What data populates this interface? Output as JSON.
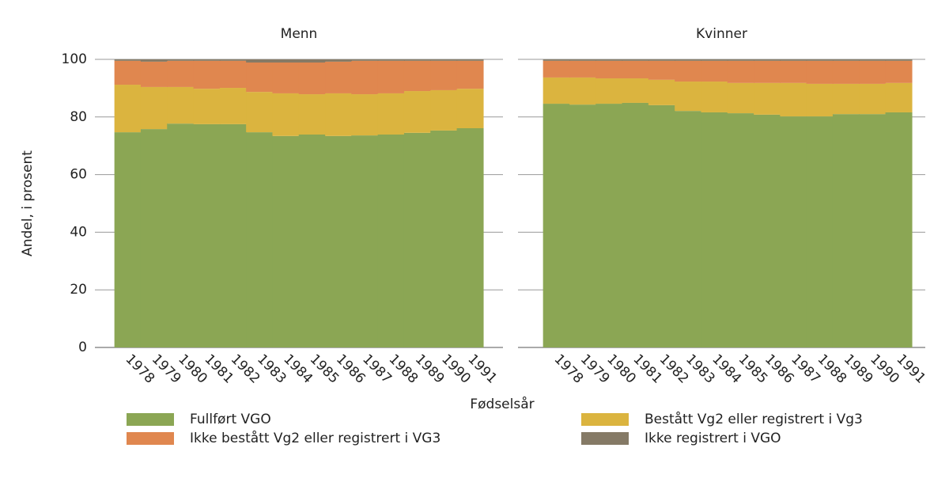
{
  "ylabel": "Andel, i prosent",
  "xlabel": "Fødselsår",
  "chart_data": [
    {
      "type": "stacked-bar",
      "title": "Menn",
      "categories": [
        "1978",
        "1979",
        "1980",
        "1981",
        "1982",
        "1983",
        "1984",
        "1985",
        "1986",
        "1987",
        "1988",
        "1989",
        "1990",
        "1991"
      ],
      "ylim": [
        0,
        100
      ],
      "yticks": [
        0,
        20,
        40,
        60,
        80,
        100
      ],
      "grid": true,
      "series": [
        {
          "name": "Fullført VGO",
          "color": "#8ba654",
          "values": [
            74.7,
            75.8,
            77.7,
            77.5,
            77.5,
            74.7,
            73.4,
            73.9,
            73.4,
            73.6,
            73.9,
            74.5,
            75.3,
            76.1
          ]
        },
        {
          "name": "Bestått Vg2 eller registrert i Vg3",
          "color": "#dbb43f",
          "values": [
            16.5,
            14.6,
            12.7,
            12.3,
            12.6,
            14.0,
            14.8,
            14.0,
            14.8,
            14.3,
            14.3,
            14.5,
            14.0,
            13.7
          ]
        },
        {
          "name": "Ikke bestått Vg2 eller registrert i VG3",
          "color": "#e0874f",
          "values": [
            8.3,
            8.8,
            9.1,
            9.7,
            9.4,
            10.2,
            10.7,
            11.0,
            11.0,
            11.6,
            11.3,
            10.5,
            10.2,
            9.7
          ]
        },
        {
          "name": "Ikke registrert i VGO",
          "color": "#857a66",
          "values": [
            0.5,
            0.8,
            0.5,
            0.5,
            0.5,
            1.1,
            1.1,
            1.1,
            0.8,
            0.5,
            0.5,
            0.5,
            0.5,
            0.5
          ]
        }
      ]
    },
    {
      "type": "stacked-bar",
      "title": "Kvinner",
      "categories": [
        "1978",
        "1979",
        "1980",
        "1981",
        "1982",
        "1983",
        "1984",
        "1985",
        "1986",
        "1987",
        "1988",
        "1989",
        "1990",
        "1991"
      ],
      "ylim": [
        0,
        100
      ],
      "yticks": [
        0,
        20,
        40,
        60,
        80,
        100
      ],
      "grid": true,
      "series": [
        {
          "name": "Fullført VGO",
          "color": "#8ba654",
          "values": [
            84.6,
            84.3,
            84.6,
            84.9,
            84.1,
            82.1,
            81.6,
            81.3,
            80.8,
            80.2,
            80.2,
            81.0,
            81.0,
            81.6
          ]
        },
        {
          "name": "Bestått Vg2 eller registrert i Vg3",
          "color": "#dbb43f",
          "values": [
            9.1,
            9.4,
            8.8,
            8.5,
            8.8,
            10.2,
            10.7,
            10.5,
            11.0,
            11.6,
            11.3,
            10.5,
            10.5,
            10.2
          ]
        },
        {
          "name": "Ikke bestått Vg2 eller registrert i VG3",
          "color": "#e0874f",
          "values": [
            5.8,
            5.8,
            6.1,
            6.1,
            6.6,
            7.2,
            7.2,
            7.7,
            7.7,
            7.7,
            8.0,
            8.0,
            8.0,
            7.7
          ]
        },
        {
          "name": "Ikke registrert i VGO",
          "color": "#857a66",
          "values": [
            0.5,
            0.5,
            0.5,
            0.5,
            0.5,
            0.5,
            0.5,
            0.5,
            0.5,
            0.5,
            0.5,
            0.5,
            0.5,
            0.5
          ]
        }
      ]
    }
  ]
}
